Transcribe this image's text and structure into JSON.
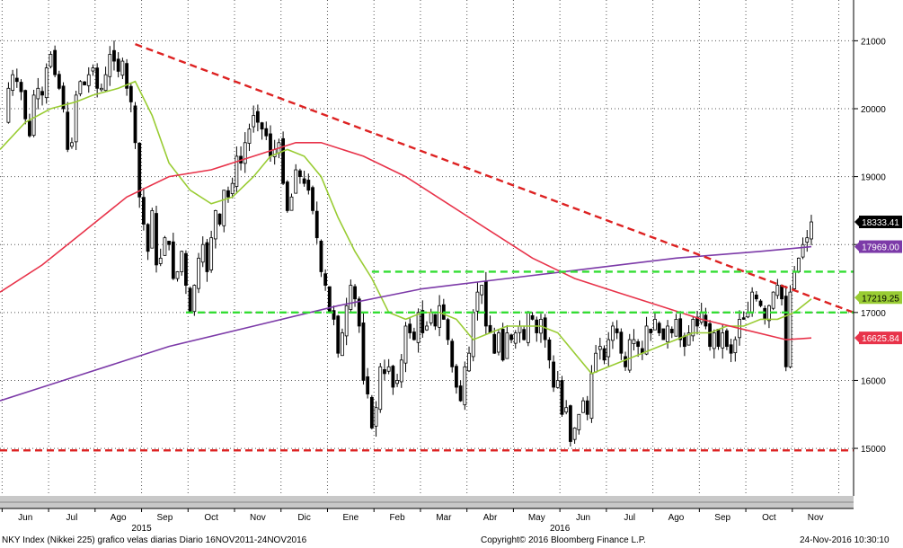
{
  "chart_data": {
    "type": "candlestick",
    "title": "",
    "xlabel": "",
    "ylabel": "",
    "ylim": [
      14300,
      21600
    ],
    "grid": true,
    "y_ticks": [
      15000,
      16000,
      17000,
      18000,
      19000,
      20000,
      21000
    ],
    "y_tick_labels": [
      "15000",
      "16000",
      "17000",
      "18000",
      "19000",
      "20000",
      "21000"
    ],
    "x_ticks": [
      "Jun",
      "Jul",
      "Ago",
      "Sep",
      "Oct",
      "Nov",
      "Dic",
      "Ene",
      "Feb",
      "Mar",
      "Abr",
      "May",
      "Jun",
      "Jul",
      "Ago",
      "Sep",
      "Oct",
      "Nov"
    ],
    "year_labels": [
      {
        "label": "2015",
        "after_tick": 3
      },
      {
        "label": "2016",
        "after_tick": 12
      }
    ],
    "close_path": [
      [
        0,
        19800
      ],
      [
        2,
        20300
      ],
      [
        3,
        20500
      ],
      [
        4,
        20400
      ],
      [
        5,
        20250
      ],
      [
        6,
        19850
      ],
      [
        7,
        19600
      ],
      [
        8,
        20200
      ],
      [
        9,
        20300
      ],
      [
        10,
        20200
      ],
      [
        11,
        20600
      ],
      [
        12,
        20800
      ],
      [
        13,
        20500
      ],
      [
        14,
        20300
      ],
      [
        15,
        20000
      ],
      [
        16,
        19400
      ],
      [
        17,
        19500
      ],
      [
        18,
        20200
      ],
      [
        19,
        20400
      ],
      [
        20,
        20350
      ],
      [
        21,
        20500
      ],
      [
        22,
        20600
      ],
      [
        23,
        20300
      ],
      [
        24,
        20300
      ],
      [
        25,
        20500
      ],
      [
        26,
        20800
      ],
      [
        27,
        20700
      ],
      [
        28,
        20550
      ],
      [
        29,
        20700
      ],
      [
        30,
        20300
      ],
      [
        31,
        20100
      ],
      [
        32,
        19500
      ],
      [
        33,
        18700
      ],
      [
        34,
        18300
      ],
      [
        35,
        17900
      ],
      [
        36,
        18500
      ],
      [
        37,
        17700
      ],
      [
        38,
        17800
      ],
      [
        39,
        18100
      ],
      [
        40,
        18000
      ],
      [
        41,
        17500
      ],
      [
        42,
        17600
      ],
      [
        43,
        17900
      ],
      [
        44,
        17400
      ],
      [
        45,
        17000
      ],
      [
        46,
        17400
      ],
      [
        47,
        17800
      ],
      [
        48,
        18000
      ],
      [
        49,
        17600
      ],
      [
        50,
        18100
      ],
      [
        51,
        18500
      ],
      [
        52,
        18300
      ],
      [
        53,
        18800
      ],
      [
        54,
        18700
      ],
      [
        55,
        18900
      ],
      [
        56,
        19300
      ],
      [
        57,
        19200
      ],
      [
        58,
        19500
      ],
      [
        59,
        19700
      ],
      [
        60,
        19900
      ],
      [
        61,
        19800
      ],
      [
        62,
        19700
      ],
      [
        63,
        19600
      ],
      [
        64,
        19300
      ],
      [
        65,
        19400
      ],
      [
        66,
        19500
      ],
      [
        67,
        18900
      ],
      [
        68,
        18500
      ],
      [
        69,
        18700
      ],
      [
        70,
        19100
      ],
      [
        71,
        19000
      ],
      [
        72,
        18900
      ],
      [
        73,
        18800
      ],
      [
        74,
        18500
      ],
      [
        75,
        18100
      ],
      [
        76,
        17600
      ],
      [
        77,
        17400
      ],
      [
        78,
        17000
      ],
      [
        79,
        16900
      ],
      [
        80,
        16400
      ],
      [
        81,
        16700
      ],
      [
        82,
        17100
      ],
      [
        83,
        17400
      ],
      [
        84,
        17200
      ],
      [
        85,
        16800
      ],
      [
        86,
        16000
      ],
      [
        87,
        15800
      ],
      [
        88,
        15300
      ],
      [
        89,
        15600
      ],
      [
        90,
        16200
      ],
      [
        91,
        16100
      ],
      [
        92,
        16200
      ],
      [
        93,
        15900
      ],
      [
        94,
        16000
      ],
      [
        95,
        16300
      ],
      [
        96,
        16800
      ],
      [
        97,
        16700
      ],
      [
        98,
        16600
      ],
      [
        99,
        17000
      ],
      [
        100,
        16700
      ],
      [
        101,
        16800
      ],
      [
        102,
        17000
      ],
      [
        103,
        16800
      ],
      [
        104,
        17100
      ],
      [
        105,
        16900
      ],
      [
        106,
        16600
      ],
      [
        107,
        16200
      ],
      [
        108,
        15900
      ],
      [
        109,
        15700
      ],
      [
        110,
        16200
      ],
      [
        111,
        16400
      ],
      [
        112,
        17000
      ],
      [
        113,
        17300
      ],
      [
        114,
        17400
      ],
      [
        115,
        16800
      ],
      [
        116,
        16700
      ],
      [
        117,
        16400
      ],
      [
        118,
        16700
      ],
      [
        119,
        16300
      ],
      [
        120,
        16700
      ],
      [
        121,
        16600
      ],
      [
        122,
        16700
      ],
      [
        123,
        16800
      ],
      [
        124,
        16600
      ],
      [
        125,
        17000
      ],
      [
        126,
        16900
      ],
      [
        127,
        16700
      ],
      [
        128,
        16900
      ],
      [
        129,
        16600
      ],
      [
        130,
        16300
      ],
      [
        131,
        15900
      ],
      [
        132,
        16000
      ],
      [
        133,
        15500
      ],
      [
        134,
        15600
      ],
      [
        135,
        15100
      ],
      [
        136,
        15300
      ],
      [
        137,
        15500
      ],
      [
        138,
        15700
      ],
      [
        139,
        15500
      ],
      [
        140,
        16100
      ],
      [
        141,
        16400
      ],
      [
        142,
        16500
      ],
      [
        143,
        16300
      ],
      [
        144,
        16600
      ],
      [
        145,
        16800
      ],
      [
        146,
        16700
      ],
      [
        147,
        16400
      ],
      [
        148,
        16200
      ],
      [
        149,
        16600
      ],
      [
        150,
        16600
      ],
      [
        151,
        16500
      ],
      [
        152,
        16400
      ],
      [
        153,
        16800
      ],
      [
        154,
        16700
      ],
      [
        155,
        16900
      ],
      [
        156,
        16700
      ],
      [
        157,
        16600
      ],
      [
        158,
        16800
      ],
      [
        159,
        16700
      ],
      [
        160,
        16900
      ],
      [
        161,
        16600
      ],
      [
        162,
        16500
      ],
      [
        163,
        16700
      ],
      [
        164,
        16900
      ],
      [
        165,
        16800
      ],
      [
        166,
        17000
      ],
      [
        167,
        16800
      ],
      [
        168,
        16500
      ],
      [
        169,
        16700
      ],
      [
        170,
        16500
      ],
      [
        171,
        16700
      ],
      [
        172,
        16500
      ],
      [
        173,
        16400
      ],
      [
        174,
        16600
      ],
      [
        175,
        16900
      ],
      [
        176,
        16900
      ],
      [
        177,
        17000
      ],
      [
        178,
        17300
      ],
      [
        179,
        17200
      ],
      [
        180,
        17100
      ],
      [
        181,
        16900
      ],
      [
        182,
        17100
      ],
      [
        183,
        17300
      ],
      [
        184,
        17400
      ],
      [
        185,
        17200
      ],
      [
        186,
        16200
      ],
      [
        187,
        17300
      ],
      [
        188,
        17600
      ],
      [
        189,
        17800
      ],
      [
        190,
        18000
      ],
      [
        191,
        18100
      ],
      [
        192,
        18333
      ]
    ],
    "series": [
      {
        "name": "",
        "color": "#99cc33",
        "values": [
          [
            0,
            19400
          ],
          [
            6,
            19800
          ],
          [
            12,
            20000
          ],
          [
            18,
            20100
          ],
          [
            22,
            20200
          ],
          [
            28,
            20300
          ],
          [
            32,
            20400
          ],
          [
            36,
            19900
          ],
          [
            40,
            19200
          ],
          [
            45,
            18800
          ],
          [
            50,
            18600
          ],
          [
            55,
            18700
          ],
          [
            60,
            19000
          ],
          [
            64,
            19300
          ],
          [
            68,
            19400
          ],
          [
            72,
            19300
          ],
          [
            76,
            19000
          ],
          [
            80,
            18400
          ],
          [
            84,
            17900
          ],
          [
            88,
            17500
          ],
          [
            92,
            17000
          ],
          [
            96,
            16900
          ],
          [
            100,
            17000
          ],
          [
            104,
            17000
          ],
          [
            108,
            16900
          ],
          [
            112,
            16600
          ],
          [
            116,
            16700
          ],
          [
            120,
            16800
          ],
          [
            124,
            16800
          ],
          [
            128,
            16800
          ],
          [
            132,
            16700
          ],
          [
            136,
            16400
          ],
          [
            140,
            16100
          ],
          [
            144,
            16200
          ],
          [
            148,
            16300
          ],
          [
            152,
            16400
          ],
          [
            156,
            16500
          ],
          [
            160,
            16600
          ],
          [
            164,
            16700
          ],
          [
            168,
            16700
          ],
          [
            172,
            16800
          ],
          [
            176,
            16800
          ],
          [
            180,
            16900
          ],
          [
            184,
            16900
          ],
          [
            188,
            17000
          ],
          [
            192,
            17200
          ]
        ]
      },
      {
        "name": "",
        "color": "#e8334a",
        "values": [
          [
            0,
            17300
          ],
          [
            10,
            17700
          ],
          [
            20,
            18200
          ],
          [
            30,
            18700
          ],
          [
            40,
            19000
          ],
          [
            50,
            19100
          ],
          [
            60,
            19300
          ],
          [
            70,
            19500
          ],
          [
            76,
            19500
          ],
          [
            86,
            19300
          ],
          [
            96,
            19000
          ],
          [
            106,
            18600
          ],
          [
            116,
            18200
          ],
          [
            126,
            17800
          ],
          [
            136,
            17500
          ],
          [
            146,
            17300
          ],
          [
            156,
            17100
          ],
          [
            166,
            16900
          ],
          [
            176,
            16750
          ],
          [
            186,
            16600
          ],
          [
            192,
            16625
          ]
        ]
      },
      {
        "name": "",
        "color": "#7c3aa8",
        "values": [
          [
            0,
            15700
          ],
          [
            20,
            16100
          ],
          [
            40,
            16500
          ],
          [
            60,
            16800
          ],
          [
            80,
            17100
          ],
          [
            100,
            17350
          ],
          [
            120,
            17500
          ],
          [
            140,
            17650
          ],
          [
            160,
            17800
          ],
          [
            180,
            17900
          ],
          [
            192,
            17969
          ]
        ]
      }
    ],
    "trendlines": [
      {
        "style": "dashed",
        "color": "#dd2222",
        "from": [
          32,
          20950
        ],
        "to": [
          202,
          17000
        ]
      },
      {
        "style": "dashed",
        "color": "#dd2222",
        "from": [
          0,
          14970
        ],
        "to": [
          202,
          14970
        ]
      },
      {
        "style": "dashed",
        "color": "#33dd33",
        "from": [
          88,
          17600
        ],
        "to": [
          202,
          17600
        ]
      },
      {
        "style": "dashed",
        "color": "#33dd33",
        "from": [
          44,
          17000
        ],
        "to": [
          202,
          17000
        ]
      }
    ],
    "last_value_labels": [
      {
        "text": "18333.41",
        "value": 18333.41,
        "bg": "#000000",
        "fg": "#ffffff"
      },
      {
        "text": "17969.00",
        "value": 17969.0,
        "bg": "#7c3aa8",
        "fg": "#ffffff"
      },
      {
        "text": "17219.25",
        "value": 17219.25,
        "bg": "#99cc33",
        "fg": "#000000"
      },
      {
        "text": "16625.84",
        "value": 16625.84,
        "bg": "#e8334a",
        "fg": "#ffffff"
      }
    ]
  },
  "footer": {
    "left": "NKY Index (Nikkei 225) grafico velas diarias  Diario 16NOV2011-24NOV2016",
    "center": "Copyright© 2016 Bloomberg Finance L.P.",
    "right": "24-Nov-2016 10:30:10"
  }
}
